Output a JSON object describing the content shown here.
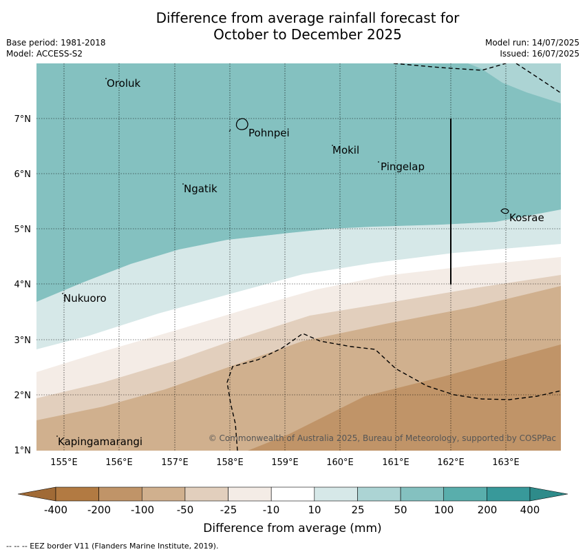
{
  "title": {
    "line1": "Difference from average rainfall forecast for",
    "line2": "October to December 2025"
  },
  "meta": {
    "base_period": "Base period: 1981-2018",
    "model": "Model: ACCESS-S2",
    "model_run": "Model run: 14/07/2025",
    "issued": "Issued: 16/07/2025"
  },
  "map": {
    "lon_ticks": [
      "155°E",
      "156°E",
      "157°E",
      "158°E",
      "159°E",
      "160°E",
      "161°E",
      "162°E",
      "163°E"
    ],
    "lat_ticks": [
      "7°N",
      "6°N",
      "5°N",
      "4°N",
      "3°N",
      "2°N",
      "1°N"
    ],
    "places": [
      {
        "name": "Oroluk",
        "lon": 155.75,
        "lat": 7.6
      },
      {
        "name": "Pohnpei",
        "lon": 158.2,
        "lat": 6.85
      },
      {
        "name": "Mokil",
        "lon": 159.8,
        "lat": 6.4
      },
      {
        "name": "Pingelap",
        "lon": 160.7,
        "lat": 6.2
      },
      {
        "name": "Ngatik",
        "lon": 157.15,
        "lat": 5.8
      },
      {
        "name": "Kosrae",
        "lon": 163.0,
        "lat": 5.3
      },
      {
        "name": "Nukuoro",
        "lon": 154.95,
        "lat": 3.85
      },
      {
        "name": "Kapingamarangi",
        "lon": 154.8,
        "lat": 1.1
      }
    ],
    "copyright": "© Commonwealth of Australia 2025, Bureau of Meteorology, supported by COSPPac"
  },
  "colorbar": {
    "ticks": [
      "-400",
      "-200",
      "-100",
      "-50",
      "-25",
      "-10",
      "10",
      "25",
      "50",
      "100",
      "200",
      "400"
    ],
    "colors": [
      "#b27a42",
      "#c09468",
      "#d0b08e",
      "#e2cfbd",
      "#f4ece6",
      "#ffffff",
      "#d6e8e8",
      "#acd4d4",
      "#84c1c0",
      "#59aeac",
      "#38999a"
    ],
    "under_color": "#a06a36",
    "over_color": "#2e8b8a",
    "label": "Difference from average (mm)"
  },
  "footer": "--  --  -- EEZ border V11 (Flanders Marine Institute, 2019)."
}
